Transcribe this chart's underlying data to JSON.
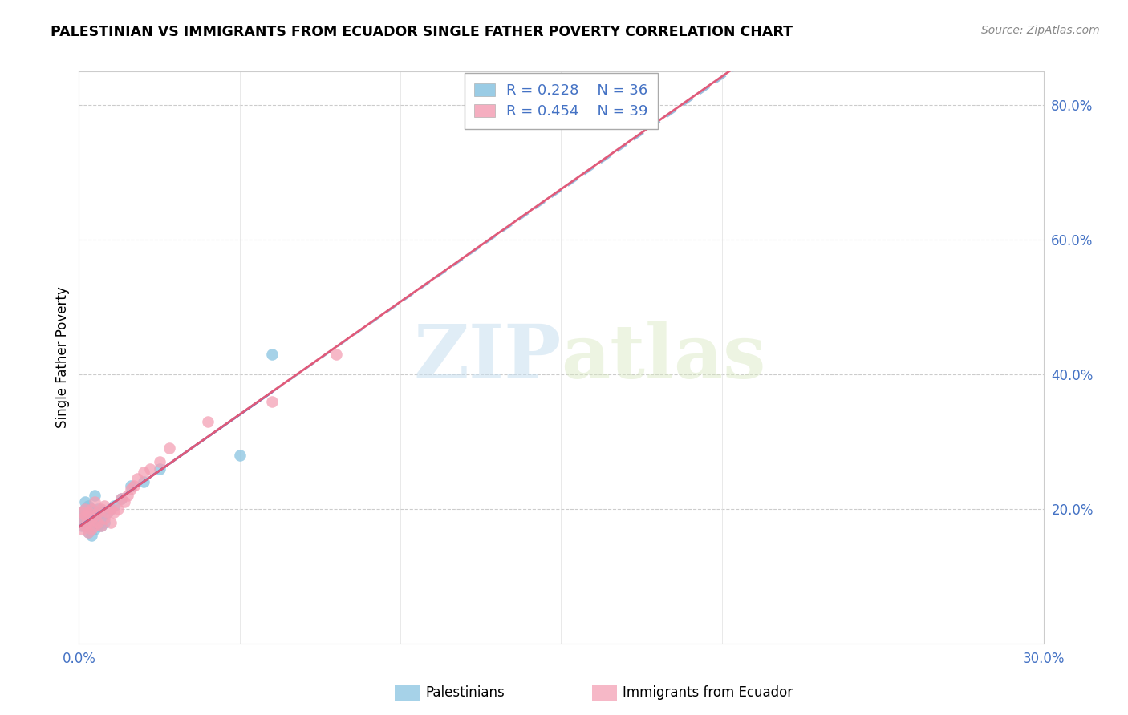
{
  "title": "PALESTINIAN VS IMMIGRANTS FROM ECUADOR SINGLE FATHER POVERTY CORRELATION CHART",
  "source": "Source: ZipAtlas.com",
  "ylabel": "Single Father Poverty",
  "xlim": [
    0.0,
    0.3
  ],
  "ylim": [
    0.0,
    0.85
  ],
  "xtick_positions": [
    0.0,
    0.05,
    0.1,
    0.15,
    0.2,
    0.25,
    0.3
  ],
  "xticklabels": [
    "0.0%",
    "",
    "",
    "",
    "",
    "",
    "30.0%"
  ],
  "ytick_positions": [
    0.2,
    0.4,
    0.6,
    0.8
  ],
  "ytick_labels": [
    "20.0%",
    "40.0%",
    "60.0%",
    "80.0%"
  ],
  "legend_label1": "Palestinians",
  "legend_label2": "Immigrants from Ecuador",
  "R1": "0.228",
  "N1": "36",
  "R2": "0.454",
  "N2": "39",
  "color1": "#89c4e1",
  "color2": "#f4a0b5",
  "trendline1_solid_color": "#4472C4",
  "trendline1_dash_color": "#9abfdf",
  "trendline2_color": "#e05a7a",
  "watermark_zip": "ZIP",
  "watermark_atlas": "atlas",
  "palestinians_x": [
    0.001,
    0.001,
    0.001,
    0.001,
    0.002,
    0.002,
    0.002,
    0.002,
    0.003,
    0.003,
    0.003,
    0.003,
    0.004,
    0.004,
    0.004,
    0.004,
    0.005,
    0.005,
    0.005,
    0.005,
    0.006,
    0.006,
    0.006,
    0.007,
    0.007,
    0.007,
    0.008,
    0.009,
    0.01,
    0.011,
    0.013,
    0.016,
    0.02,
    0.025,
    0.05,
    0.06
  ],
  "palestinians_y": [
    0.175,
    0.185,
    0.19,
    0.195,
    0.175,
    0.19,
    0.2,
    0.21,
    0.165,
    0.175,
    0.195,
    0.205,
    0.16,
    0.175,
    0.19,
    0.2,
    0.17,
    0.185,
    0.195,
    0.22,
    0.175,
    0.19,
    0.2,
    0.175,
    0.185,
    0.195,
    0.18,
    0.195,
    0.2,
    0.205,
    0.215,
    0.235,
    0.24,
    0.26,
    0.28,
    0.43
  ],
  "ecuador_x": [
    0.001,
    0.001,
    0.001,
    0.002,
    0.002,
    0.002,
    0.003,
    0.003,
    0.003,
    0.004,
    0.004,
    0.004,
    0.005,
    0.005,
    0.005,
    0.006,
    0.006,
    0.007,
    0.007,
    0.008,
    0.008,
    0.009,
    0.01,
    0.01,
    0.011,
    0.012,
    0.013,
    0.014,
    0.015,
    0.016,
    0.017,
    0.018,
    0.02,
    0.022,
    0.025,
    0.028,
    0.04,
    0.06,
    0.08
  ],
  "ecuador_y": [
    0.17,
    0.185,
    0.195,
    0.175,
    0.19,
    0.2,
    0.165,
    0.18,
    0.195,
    0.17,
    0.185,
    0.2,
    0.175,
    0.19,
    0.21,
    0.18,
    0.195,
    0.175,
    0.2,
    0.185,
    0.205,
    0.195,
    0.18,
    0.2,
    0.195,
    0.2,
    0.215,
    0.21,
    0.22,
    0.23,
    0.235,
    0.245,
    0.255,
    0.26,
    0.27,
    0.29,
    0.33,
    0.36,
    0.43
  ]
}
